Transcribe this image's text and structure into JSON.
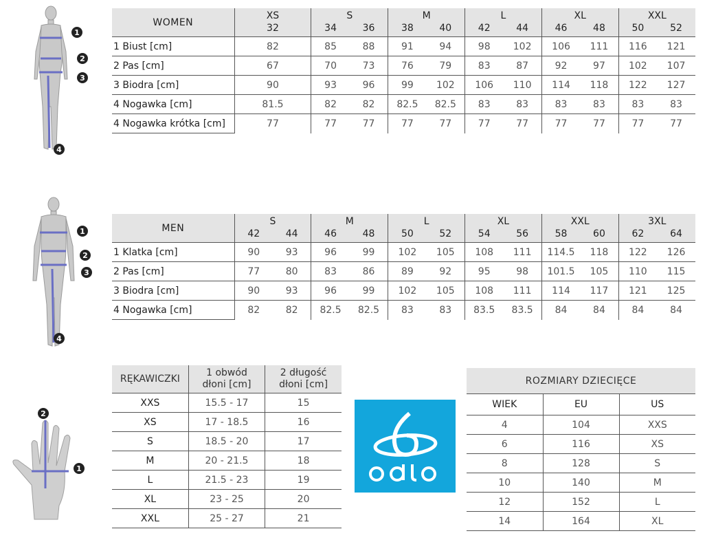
{
  "women": {
    "title": "WOMEN",
    "groups": [
      {
        "label": "XS",
        "sizes": [
          "32"
        ]
      },
      {
        "label": "S",
        "sizes": [
          "34",
          "36"
        ]
      },
      {
        "label": "M",
        "sizes": [
          "38",
          "40"
        ]
      },
      {
        "label": "L",
        "sizes": [
          "42",
          "44"
        ]
      },
      {
        "label": "XL",
        "sizes": [
          "46",
          "48"
        ]
      },
      {
        "label": "XXL",
        "sizes": [
          "50",
          "52"
        ]
      }
    ],
    "rows": [
      {
        "label": "1 Biust [cm]",
        "values": [
          "82",
          "85",
          "88",
          "91",
          "94",
          "98",
          "102",
          "106",
          "111",
          "116",
          "121"
        ]
      },
      {
        "label": "2 Pas [cm]",
        "values": [
          "67",
          "70",
          "73",
          "76",
          "79",
          "83",
          "87",
          "92",
          "97",
          "102",
          "107"
        ]
      },
      {
        "label": "3 Biodra [cm]",
        "values": [
          "90",
          "93",
          "96",
          "99",
          "102",
          "106",
          "110",
          "114",
          "118",
          "122",
          "127"
        ]
      },
      {
        "label": "4 Nogawka [cm]",
        "values": [
          "81.5",
          "82",
          "82",
          "82.5",
          "82.5",
          "83",
          "83",
          "83",
          "83",
          "83",
          "83"
        ]
      },
      {
        "label": "4 Nogawka krótka [cm]",
        "values": [
          "77",
          "77",
          "77",
          "77",
          "77",
          "77",
          "77",
          "77",
          "77",
          "77",
          "77"
        ]
      }
    ]
  },
  "men": {
    "title": "MEN",
    "groups": [
      {
        "label": "S",
        "sizes": [
          "42",
          "44"
        ]
      },
      {
        "label": "M",
        "sizes": [
          "46",
          "48"
        ]
      },
      {
        "label": "L",
        "sizes": [
          "50",
          "52"
        ]
      },
      {
        "label": "XL",
        "sizes": [
          "54",
          "56"
        ]
      },
      {
        "label": "XXL",
        "sizes": [
          "58",
          "60"
        ]
      },
      {
        "label": "3XL",
        "sizes": [
          "62",
          "64"
        ]
      }
    ],
    "rows": [
      {
        "label": "1 Klatka [cm]",
        "values": [
          "90",
          "93",
          "96",
          "99",
          "102",
          "105",
          "108",
          "111",
          "114.5",
          "118",
          "122",
          "126"
        ]
      },
      {
        "label": "2 Pas [cm]",
        "values": [
          "77",
          "80",
          "83",
          "86",
          "89",
          "92",
          "95",
          "98",
          "101.5",
          "105",
          "110",
          "115"
        ]
      },
      {
        "label": "3 Biodra [cm]",
        "values": [
          "90",
          "93",
          "96",
          "99",
          "102",
          "105",
          "108",
          "111",
          "114",
          "117",
          "121",
          "125"
        ]
      },
      {
        "label": "4 Nogawka [cm]",
        "values": [
          "82",
          "82",
          "82.5",
          "82.5",
          "83",
          "83",
          "83.5",
          "83.5",
          "84",
          "84",
          "84",
          "84"
        ]
      }
    ]
  },
  "gloves": {
    "headers": [
      "RĘKAWICZKI",
      "1 obwód\ndłoni [cm]",
      "2 długość\ndłoni [cm]"
    ],
    "rows": [
      [
        "XXS",
        "15.5 - 17",
        "15"
      ],
      [
        "XS",
        "17 - 18.5",
        "16"
      ],
      [
        "S",
        "18.5 - 20",
        "17"
      ],
      [
        "M",
        "20 - 21.5",
        "18"
      ],
      [
        "L",
        "21.5 - 23",
        "19"
      ],
      [
        "XL",
        "23 - 25",
        "20"
      ],
      [
        "XXL",
        "25 - 27",
        "21"
      ]
    ]
  },
  "kids": {
    "title": "ROZMIARY DZIECIĘCE",
    "headers": [
      "WIEK",
      "EU",
      "US"
    ],
    "rows": [
      [
        "4",
        "104",
        "XXS"
      ],
      [
        "6",
        "116",
        "XS"
      ],
      [
        "8",
        "128",
        "S"
      ],
      [
        "10",
        "140",
        "M"
      ],
      [
        "12",
        "152",
        "L"
      ],
      [
        "14",
        "164",
        "XL"
      ]
    ]
  },
  "logo": {
    "text": "odlo",
    "color": "#13a6dc"
  },
  "figures": {
    "markers_women": [
      "1",
      "2",
      "3",
      "4"
    ],
    "markers_men": [
      "1",
      "2",
      "3",
      "4"
    ],
    "markers_hand": [
      "2",
      "1"
    ],
    "measure_color": "#6a6fc4"
  }
}
